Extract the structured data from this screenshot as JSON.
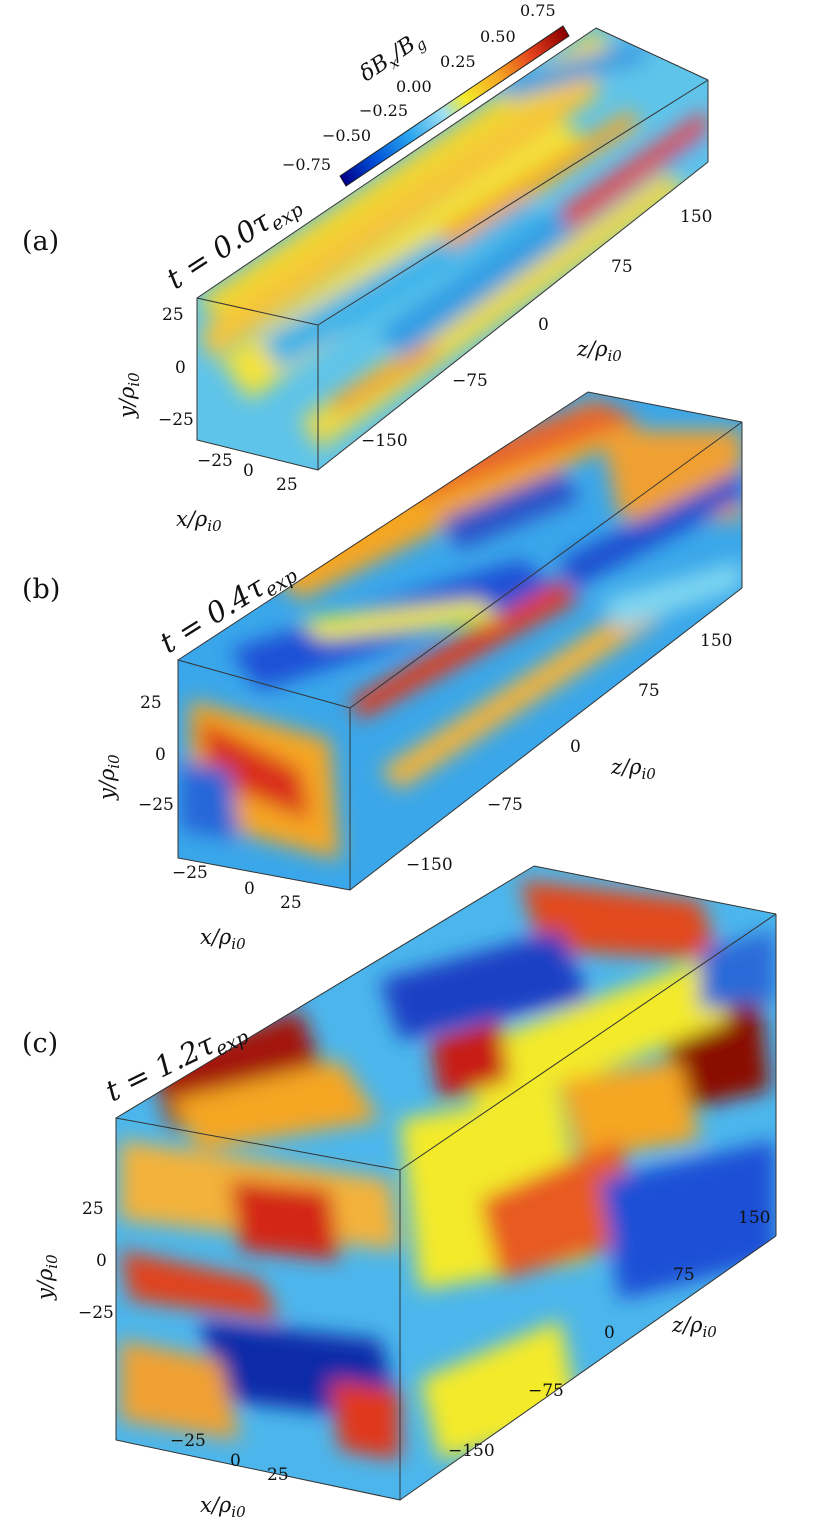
{
  "colorbar": {
    "label": "δB_x/B_g",
    "label_main": "δB",
    "label_sub_x": "x",
    "label_slash": "/B",
    "label_sub_g": "g",
    "ticks": [
      "−0.75",
      "−0.50",
      "−0.25",
      "0.00",
      "0.25",
      "0.50",
      "0.75"
    ],
    "tick_values": [
      -0.75,
      -0.5,
      -0.25,
      0.0,
      0.25,
      0.5,
      0.75
    ],
    "colors": [
      "#00008b",
      "#0050d8",
      "#2aa6ee",
      "#7fd6f0",
      "#f3ea2a",
      "#f5a623",
      "#e2401c",
      "#8b0000"
    ]
  },
  "panels": [
    {
      "id": "a",
      "panel_label": "(a)",
      "time_label": "t = 0.0τ",
      "time_main": "t = 0.0τ",
      "time_sub": "exp",
      "x_ticks": [
        "−25",
        "0",
        "25"
      ],
      "y_ticks": [
        "25",
        "0",
        "−25"
      ],
      "z_ticks": [
        "150",
        "75",
        "0",
        "−75",
        "−150"
      ],
      "x_label": "x/ρ",
      "x_label_sub": "i0",
      "y_label": "y/ρ",
      "y_label_sub": "i0",
      "z_label": "z/ρ",
      "z_label_sub": "i0",
      "dominant": "yellow-cyan"
    },
    {
      "id": "b",
      "panel_label": "(b)",
      "time_main": "t = 0.4τ",
      "time_sub": "exp",
      "x_ticks": [
        "−25",
        "0",
        "25"
      ],
      "y_ticks": [
        "25",
        "0",
        "−25"
      ],
      "z_ticks": [
        "150",
        "75",
        "0",
        "−75",
        "−150"
      ],
      "x_label": "x/ρ",
      "x_label_sub": "i0",
      "y_label": "y/ρ",
      "y_label_sub": "i0",
      "z_label": "z/ρ",
      "z_label_sub": "i0",
      "dominant": "blue-orange"
    },
    {
      "id": "c",
      "panel_label": "(c)",
      "time_main": "t = 1.2τ",
      "time_sub": "exp",
      "x_ticks": [
        "−25",
        "0",
        "25"
      ],
      "y_ticks": [
        "25",
        "0",
        "−25"
      ],
      "z_ticks": [
        "150",
        "75",
        "0",
        "−75",
        "−150"
      ],
      "x_label": "x/ρ",
      "x_label_sub": "i0",
      "y_label": "y/ρ",
      "y_label_sub": "i0",
      "z_label": "z/ρ",
      "z_label_sub": "i0",
      "dominant": "red-blue"
    }
  ]
}
